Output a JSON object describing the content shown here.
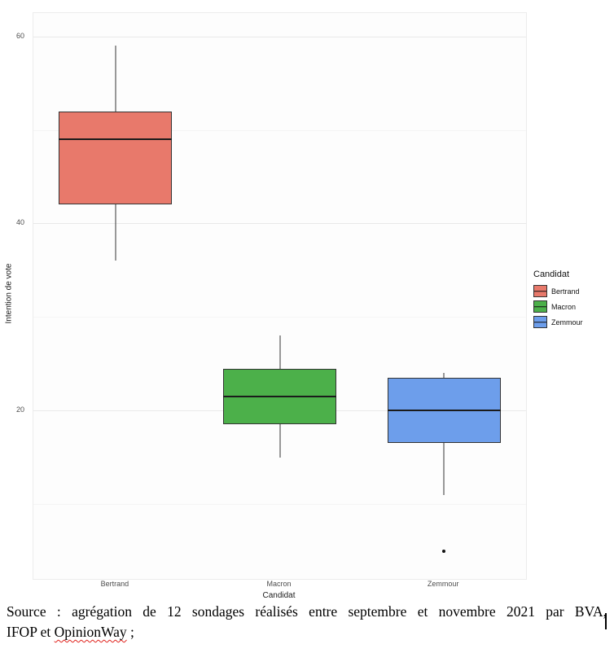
{
  "chart_data": {
    "type": "boxplot",
    "title": "",
    "xlabel": "Candidat",
    "ylabel": "Intention de vote",
    "ylim": [
      2,
      62.5
    ],
    "yticks": [
      20,
      40,
      60
    ],
    "grid": true,
    "categories": [
      "Bertrand",
      "Macron",
      "Zemmour"
    ],
    "series": [
      {
        "name": "Bertrand",
        "color": "#e8796b",
        "whisker_low": 36,
        "q1": 42,
        "median": 49,
        "q3": 52,
        "whisker_high": 59,
        "outliers": []
      },
      {
        "name": "Macron",
        "color": "#4cb04a",
        "whisker_low": 15,
        "q1": 18.5,
        "median": 21.5,
        "q3": 24.5,
        "whisker_high": 28,
        "outliers": []
      },
      {
        "name": "Zemmour",
        "color": "#6d9eeb",
        "whisker_low": 11,
        "q1": 16.5,
        "median": 20,
        "q3": 23.5,
        "whisker_high": 24,
        "outliers": [
          5
        ]
      }
    ],
    "legend": {
      "title": "Candidat",
      "entries": [
        "Bertrand",
        "Macron",
        "Zemmour"
      ],
      "position": "right"
    }
  },
  "caption": {
    "line1": "Source : agrégation de 12 sondages réalisés entre septembre et novembre 2021 par BVA,",
    "line2_prefix": "IFOP et ",
    "line2_word": "OpinionWay",
    "line2_suffix": " ;"
  }
}
